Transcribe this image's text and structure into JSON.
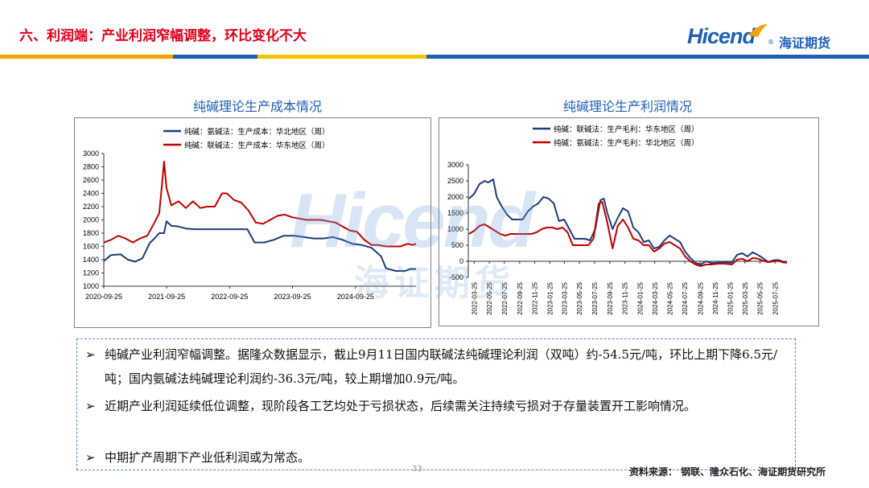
{
  "header": {
    "title": "六、利润端：产业利润窄幅调整，环比变化不大",
    "logo_text": "Hicend",
    "logo_reg": "®",
    "logo_cn": "海证期货",
    "stripe_colors": [
      "#f5a100",
      "#1f5fb8",
      "#f5c400",
      "#1f5fb8"
    ]
  },
  "watermark": {
    "text": "Hicend",
    "cn": "海证期货"
  },
  "charts": {
    "left_title": "纯碱理论生产成本情况",
    "right_title": "纯碱理论生产利润情况"
  },
  "chart_data": [
    {
      "type": "line",
      "title": "纯碱理论生产成本情况",
      "x_ticks": [
        "2020-09-25",
        "2021-09-25",
        "2022-09-25",
        "2023-09-25",
        "2024-09-25"
      ],
      "x_range": [
        "2020-09-25",
        "2025-09-11"
      ],
      "ylim": [
        1000,
        3000
      ],
      "y_ticks": [
        1000,
        1200,
        1400,
        1600,
        1800,
        2000,
        2200,
        2400,
        2600,
        2800,
        3000
      ],
      "legend_position": "top",
      "series": [
        {
          "name": "纯碱：氨碱法：生产成本：华北地区（周）",
          "color": "#1f3d7a",
          "points": [
            [
              "2020-09-25",
              1380
            ],
            [
              "2020-11-06",
              1470
            ],
            [
              "2021-01-01",
              1480
            ],
            [
              "2021-02-12",
              1400
            ],
            [
              "2021-03-26",
              1370
            ],
            [
              "2021-05-07",
              1420
            ],
            [
              "2021-06-18",
              1650
            ],
            [
              "2021-07-16",
              1720
            ],
            [
              "2021-08-13",
              1800
            ],
            [
              "2021-09-10",
              1800
            ],
            [
              "2021-09-24",
              1980
            ],
            [
              "2021-10-22",
              1910
            ],
            [
              "2021-12-03",
              1900
            ],
            [
              "2022-01-14",
              1870
            ],
            [
              "2022-03-04",
              1860
            ],
            [
              "2022-05-06",
              1860
            ],
            [
              "2022-07-01",
              1860
            ],
            [
              "2022-09-02",
              1860
            ],
            [
              "2022-11-04",
              1860
            ],
            [
              "2023-01-06",
              1860
            ],
            [
              "2023-02-17",
              1660
            ],
            [
              "2023-04-14",
              1660
            ],
            [
              "2023-06-09",
              1700
            ],
            [
              "2023-08-04",
              1760
            ],
            [
              "2023-10-06",
              1760
            ],
            [
              "2023-12-01",
              1740
            ],
            [
              "2024-01-26",
              1720
            ],
            [
              "2024-03-22",
              1720
            ],
            [
              "2024-05-17",
              1740
            ],
            [
              "2024-07-12",
              1700
            ],
            [
              "2024-09-06",
              1640
            ],
            [
              "2024-11-01",
              1620
            ],
            [
              "2024-12-27",
              1580
            ],
            [
              "2025-02-21",
              1450
            ],
            [
              "2025-03-21",
              1270
            ],
            [
              "2025-05-16",
              1230
            ],
            [
              "2025-07-11",
              1230
            ],
            [
              "2025-08-08",
              1260
            ],
            [
              "2025-09-11",
              1260
            ]
          ]
        },
        {
          "name": "纯碱：联碱法：生产成本：华东地区（周）",
          "color": "#c00000",
          "points": [
            [
              "2020-09-25",
              1660
            ],
            [
              "2020-11-06",
              1700
            ],
            [
              "2020-12-18",
              1760
            ],
            [
              "2021-01-29",
              1720
            ],
            [
              "2021-03-12",
              1660
            ],
            [
              "2021-04-23",
              1720
            ],
            [
              "2021-06-04",
              1760
            ],
            [
              "2021-07-16",
              1960
            ],
            [
              "2021-08-13",
              2100
            ],
            [
              "2021-08-27",
              2480
            ],
            [
              "2021-09-10",
              2880
            ],
            [
              "2021-09-24",
              2480
            ],
            [
              "2021-10-22",
              2220
            ],
            [
              "2021-12-03",
              2280
            ],
            [
              "2022-01-14",
              2180
            ],
            [
              "2022-02-25",
              2280
            ],
            [
              "2022-04-08",
              2180
            ],
            [
              "2022-05-20",
              2200
            ],
            [
              "2022-07-01",
              2200
            ],
            [
              "2022-08-12",
              2400
            ],
            [
              "2022-09-09",
              2400
            ],
            [
              "2022-10-21",
              2300
            ],
            [
              "2022-12-02",
              2260
            ],
            [
              "2023-01-13",
              2140
            ],
            [
              "2023-02-24",
              1960
            ],
            [
              "2023-04-07",
              1940
            ],
            [
              "2023-05-19",
              2000
            ],
            [
              "2023-06-30",
              2060
            ],
            [
              "2023-08-11",
              2080
            ],
            [
              "2023-09-22",
              2040
            ],
            [
              "2023-11-03",
              2020
            ],
            [
              "2023-12-15",
              2000
            ],
            [
              "2024-01-26",
              2000
            ],
            [
              "2024-03-08",
              2000
            ],
            [
              "2024-04-19",
              1980
            ],
            [
              "2024-05-31",
              1960
            ],
            [
              "2024-07-12",
              1900
            ],
            [
              "2024-08-23",
              1840
            ],
            [
              "2024-10-04",
              1820
            ],
            [
              "2024-11-15",
              1700
            ],
            [
              "2024-12-27",
              1620
            ],
            [
              "2025-02-07",
              1620
            ],
            [
              "2025-03-21",
              1600
            ],
            [
              "2025-05-02",
              1600
            ],
            [
              "2025-06-13",
              1600
            ],
            [
              "2025-07-25",
              1640
            ],
            [
              "2025-08-22",
              1620
            ],
            [
              "2025-09-11",
              1640
            ]
          ]
        }
      ]
    },
    {
      "type": "line",
      "title": "纯碱理论生产利润情况",
      "x_ticks": [
        "2022-03-25",
        "2022-05-25",
        "2022-07-25",
        "2022-09-25",
        "2022-11-25",
        "2023-01-25",
        "2023-03-25",
        "2023-05-25",
        "2023-07-25",
        "2023-09-25",
        "2023-11-25",
        "2024-01-25",
        "2024-03-25",
        "2024-05-25",
        "2024-07-25",
        "2024-09-25",
        "2024-11-25",
        "2025-01-25",
        "2025-03-25",
        "2025-05-25",
        "2025-07-25"
      ],
      "x_range": [
        "2022-03-01",
        "2025-09-11"
      ],
      "ylim": [
        -500,
        3000
      ],
      "y_ticks": [
        -500,
        0,
        500,
        1000,
        1500,
        2000,
        2500,
        3000
      ],
      "legend_position": "top",
      "series": [
        {
          "name": "纯碱：联碱法：生产毛利：华东地区（周）",
          "color": "#1f3d7a",
          "points": [
            [
              "2022-03-04",
              1950
            ],
            [
              "2022-03-25",
              2100
            ],
            [
              "2022-04-15",
              2400
            ],
            [
              "2022-05-06",
              2500
            ],
            [
              "2022-05-20",
              2450
            ],
            [
              "2022-06-10",
              2550
            ],
            [
              "2022-06-24",
              2000
            ],
            [
              "2022-07-15",
              1700
            ],
            [
              "2022-08-05",
              1450
            ],
            [
              "2022-08-26",
              1300
            ],
            [
              "2022-09-16",
              1300
            ],
            [
              "2022-10-07",
              1300
            ],
            [
              "2022-10-28",
              1550
            ],
            [
              "2022-11-18",
              1700
            ],
            [
              "2022-12-09",
              1800
            ],
            [
              "2022-12-30",
              2000
            ],
            [
              "2023-01-20",
              1950
            ],
            [
              "2023-02-10",
              1800
            ],
            [
              "2023-03-03",
              1250
            ],
            [
              "2023-03-24",
              1300
            ],
            [
              "2023-04-14",
              1000
            ],
            [
              "2023-05-05",
              700
            ],
            [
              "2023-05-26",
              700
            ],
            [
              "2023-06-16",
              700
            ],
            [
              "2023-07-07",
              650
            ],
            [
              "2023-07-28",
              1000
            ],
            [
              "2023-08-18",
              1900
            ],
            [
              "2023-09-01",
              1950
            ],
            [
              "2023-09-15",
              1500
            ],
            [
              "2023-10-06",
              1000
            ],
            [
              "2023-10-27",
              1350
            ],
            [
              "2023-11-17",
              1650
            ],
            [
              "2023-12-08",
              1550
            ],
            [
              "2023-12-29",
              1050
            ],
            [
              "2024-01-19",
              900
            ],
            [
              "2024-02-09",
              600
            ],
            [
              "2024-03-01",
              650
            ],
            [
              "2024-03-22",
              400
            ],
            [
              "2024-04-12",
              450
            ],
            [
              "2024-05-03",
              650
            ],
            [
              "2024-05-24",
              800
            ],
            [
              "2024-06-14",
              700
            ],
            [
              "2024-07-05",
              600
            ],
            [
              "2024-07-26",
              300
            ],
            [
              "2024-08-16",
              100
            ],
            [
              "2024-09-06",
              -50
            ],
            [
              "2024-09-27",
              -100
            ],
            [
              "2024-10-18",
              0
            ],
            [
              "2024-11-08",
              -50
            ],
            [
              "2024-11-29",
              -50
            ],
            [
              "2024-12-20",
              -20
            ],
            [
              "2025-01-10",
              -30
            ],
            [
              "2025-01-31",
              -40
            ],
            [
              "2025-02-21",
              200
            ],
            [
              "2025-03-14",
              250
            ],
            [
              "2025-04-04",
              150
            ],
            [
              "2025-04-25",
              280
            ],
            [
              "2025-05-16",
              200
            ],
            [
              "2025-06-06",
              100
            ],
            [
              "2025-06-27",
              -20
            ],
            [
              "2025-07-18",
              30
            ],
            [
              "2025-08-08",
              40
            ],
            [
              "2025-08-29",
              -20
            ],
            [
              "2025-09-11",
              -54.5
            ]
          ]
        },
        {
          "name": "纯碱：氨碱法：生产毛利：华北地区（周）",
          "color": "#c00000",
          "points": [
            [
              "2022-03-04",
              850
            ],
            [
              "2022-03-25",
              950
            ],
            [
              "2022-04-15",
              1100
            ],
            [
              "2022-05-06",
              1150
            ],
            [
              "2022-05-27",
              1050
            ],
            [
              "2022-06-17",
              950
            ],
            [
              "2022-07-08",
              850
            ],
            [
              "2022-07-29",
              800
            ],
            [
              "2022-08-19",
              850
            ],
            [
              "2022-09-09",
              850
            ],
            [
              "2022-09-30",
              850
            ],
            [
              "2022-10-21",
              850
            ],
            [
              "2022-11-11",
              850
            ],
            [
              "2022-12-02",
              900
            ],
            [
              "2022-12-23",
              1000
            ],
            [
              "2023-01-13",
              1050
            ],
            [
              "2023-02-03",
              1050
            ],
            [
              "2023-02-24",
              1000
            ],
            [
              "2023-03-17",
              1050
            ],
            [
              "2023-04-07",
              900
            ],
            [
              "2023-04-28",
              500
            ],
            [
              "2023-05-19",
              500
            ],
            [
              "2023-06-09",
              500
            ],
            [
              "2023-06-30",
              500
            ],
            [
              "2023-07-21",
              700
            ],
            [
              "2023-08-11",
              1800
            ],
            [
              "2023-08-25",
              1850
            ],
            [
              "2023-09-15",
              1200
            ],
            [
              "2023-10-06",
              400
            ],
            [
              "2023-10-27",
              1100
            ],
            [
              "2023-11-17",
              1300
            ],
            [
              "2023-12-08",
              1050
            ],
            [
              "2023-12-29",
              700
            ],
            [
              "2024-01-19",
              650
            ],
            [
              "2024-02-09",
              500
            ],
            [
              "2024-03-01",
              500
            ],
            [
              "2024-03-22",
              300
            ],
            [
              "2024-04-12",
              400
            ],
            [
              "2024-05-03",
              550
            ],
            [
              "2024-05-24",
              600
            ],
            [
              "2024-06-14",
              500
            ],
            [
              "2024-07-05",
              400
            ],
            [
              "2024-07-26",
              150
            ],
            [
              "2024-08-16",
              0
            ],
            [
              "2024-09-06",
              -100
            ],
            [
              "2024-09-27",
              -150
            ],
            [
              "2024-10-18",
              -100
            ],
            [
              "2024-11-08",
              -100
            ],
            [
              "2024-11-29",
              -80
            ],
            [
              "2024-12-20",
              -70
            ],
            [
              "2025-01-10",
              -80
            ],
            [
              "2025-01-31",
              -100
            ],
            [
              "2025-02-21",
              50
            ],
            [
              "2025-03-14",
              80
            ],
            [
              "2025-04-04",
              0
            ],
            [
              "2025-04-25",
              100
            ],
            [
              "2025-05-16",
              80
            ],
            [
              "2025-06-06",
              20
            ],
            [
              "2025-06-27",
              -30
            ],
            [
              "2025-07-18",
              0
            ],
            [
              "2025-08-08",
              10
            ],
            [
              "2025-08-29",
              -40
            ],
            [
              "2025-09-11",
              -36.3
            ]
          ]
        }
      ]
    }
  ],
  "bullets": [
    {
      "arrow": "➢",
      "text": "纯碱产业利润窄幅调整。据隆众数据显示，截止9月11日国内联碱法纯碱理论利润（双吨）约-54.5元/吨，环比上期下降6.5元/吨；国内氨碱法纯碱理论利润约-36.3元/吨，较上期增加0.9元/吨。"
    },
    {
      "arrow": "➢",
      "text": "近期产业利润延续低位调整，现阶段各工艺均处于亏损状态，后续需关注持续亏损对于存量装置开工影响情况。"
    },
    {
      "arrow": "➢",
      "text": "中期扩产周期下产业低利润或为常态。"
    }
  ],
  "footer": {
    "source": "资料来源：  钢联、隆众石化、海证期货研究所",
    "page_number": "33"
  }
}
